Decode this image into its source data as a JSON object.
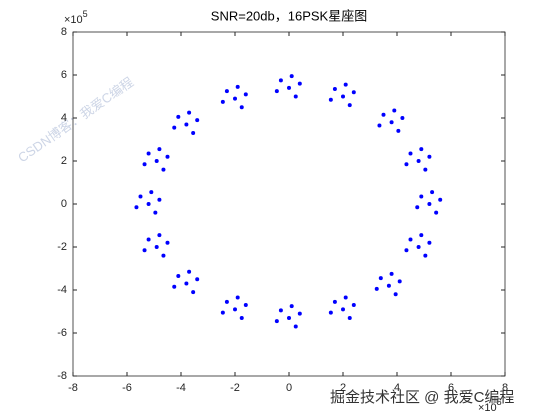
{
  "chart_data": {
    "type": "scatter",
    "title": "SNR=20db，16PSK星座图",
    "x_multiplier": {
      "base": "×10",
      "exp": "5"
    },
    "y_multiplier": {
      "base": "×10",
      "exp": "5"
    },
    "xlim": [
      -8,
      8
    ],
    "ylim": [
      -8,
      8
    ],
    "xticks": [
      -8,
      -6,
      -4,
      -2,
      0,
      2,
      4,
      6,
      8
    ],
    "yticks": [
      -8,
      -6,
      -4,
      -2,
      0,
      2,
      4,
      6,
      8
    ],
    "series": [
      {
        "color": "#0000ff",
        "x": [
          0,
          0.4,
          -0.3,
          0.25,
          -0.45,
          0.1,
          2,
          2.4,
          1.7,
          2.25,
          1.55,
          2.1,
          3.8,
          4.2,
          3.5,
          4.05,
          3.35,
          3.9,
          4.8,
          5.2,
          4.5,
          5.05,
          4.35,
          4.9,
          5.2,
          5.6,
          4.9,
          5.45,
          4.75,
          5.3,
          4.8,
          5.2,
          4.5,
          5.05,
          4.35,
          4.9,
          3.7,
          4.1,
          3.4,
          3.95,
          3.25,
          3.8,
          2,
          2.4,
          1.7,
          2.25,
          1.55,
          2.1,
          0,
          0.4,
          -0.3,
          0.25,
          -0.45,
          0.1,
          -2,
          -1.6,
          -2.3,
          -1.75,
          -2.45,
          -1.9,
          -3.8,
          -3.4,
          -4.1,
          -3.55,
          -4.25,
          -3.7,
          -4.9,
          -4.5,
          -5.2,
          -4.65,
          -5.35,
          -4.8,
          -5.2,
          -4.8,
          -5.5,
          -4.95,
          -5.65,
          -5.1,
          -4.9,
          -4.5,
          -5.2,
          -4.65,
          -5.35,
          -4.8,
          -3.8,
          -3.4,
          -4.1,
          -3.55,
          -4.25,
          -3.7,
          -2,
          -1.6,
          -2.3,
          -1.75,
          -2.45,
          -1.9
        ],
        "values": [
          5.4,
          5.6,
          5.75,
          5,
          5.25,
          5.95,
          5,
          5.2,
          5.35,
          4.6,
          4.85,
          5.55,
          3.8,
          4,
          4.15,
          3.4,
          3.65,
          4.35,
          2,
          2.2,
          2.35,
          1.6,
          1.85,
          2.55,
          0,
          0.2,
          0.35,
          -0.4,
          -0.15,
          0.55,
          -2,
          -1.8,
          -1.65,
          -2.4,
          -2.15,
          -1.45,
          -3.8,
          -3.6,
          -3.45,
          -4.2,
          -3.95,
          -3.25,
          -4.9,
          -4.7,
          -4.55,
          -5.3,
          -5.05,
          -4.35,
          -5.3,
          -5.1,
          -4.95,
          -5.7,
          -5.45,
          -4.75,
          -4.9,
          -4.7,
          -4.55,
          -5.3,
          -5.05,
          -4.35,
          -3.7,
          -3.5,
          -3.35,
          -4.1,
          -3.85,
          -3.15,
          -2,
          -1.8,
          -1.65,
          -2.4,
          -2.15,
          -1.45,
          0,
          0.2,
          0.35,
          -0.4,
          -0.15,
          0.55,
          2,
          2.2,
          2.35,
          1.6,
          1.85,
          2.55,
          3.7,
          3.9,
          4.05,
          3.3,
          3.55,
          4.25,
          4.9,
          5.1,
          5.25,
          4.5,
          4.75,
          5.45
        ]
      }
    ],
    "watermarks": [
      "CSDN博客：我爱C编程",
      "掘金技术社区 @ 我爱C编程"
    ]
  }
}
